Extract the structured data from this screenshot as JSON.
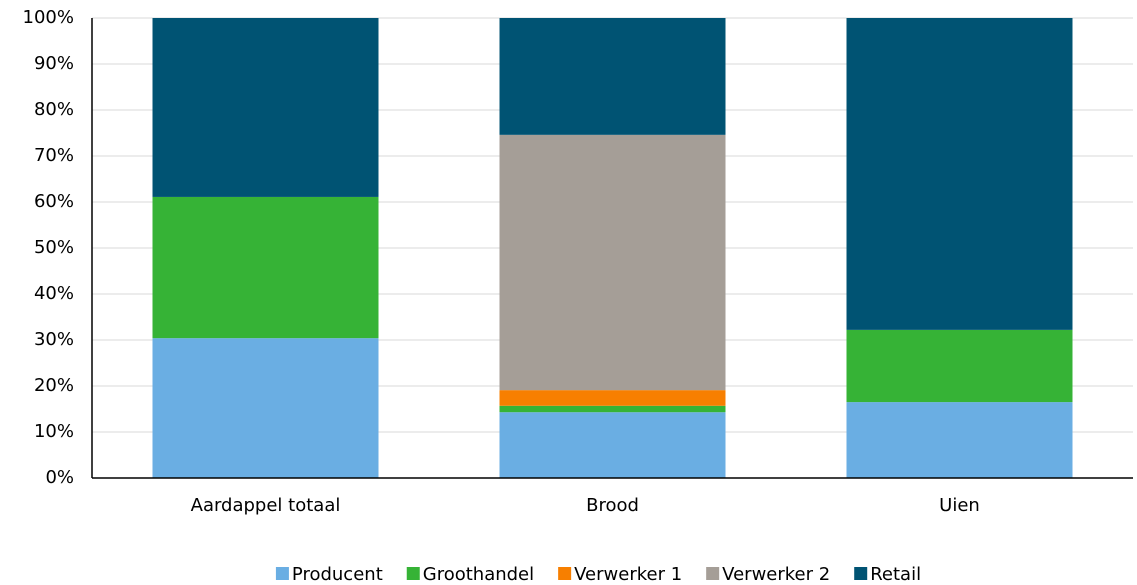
{
  "chart_data": {
    "type": "stacked_bar",
    "categories": [
      "Aardappel totaal",
      "Brood",
      "Uien"
    ],
    "series": [
      {
        "name": "Producent",
        "color": "#6aaee3",
        "values": [
          30.4,
          14.3,
          16.5
        ]
      },
      {
        "name": "Groothandel",
        "color": "#36b336",
        "values": [
          30.7,
          1.4,
          15.7
        ]
      },
      {
        "name": "Verwerker 1",
        "color": "#f77f00",
        "values": [
          0,
          3.4,
          0
        ]
      },
      {
        "name": "Verwerker 2",
        "color": "#a59e97",
        "values": [
          0,
          55.5,
          0
        ]
      },
      {
        "name": "Retail",
        "color": "#005373",
        "values": [
          38.9,
          25.4,
          67.8
        ]
      }
    ],
    "ylim": [
      0,
      100
    ],
    "yticks": [
      {
        "value": 0,
        "label": "0%"
      },
      {
        "value": 10,
        "label": "10%"
      },
      {
        "value": 20,
        "label": "20%"
      },
      {
        "value": 30,
        "label": "30%"
      },
      {
        "value": 40,
        "label": "40%"
      },
      {
        "value": 50,
        "label": "50%"
      },
      {
        "value": 60,
        "label": "60%"
      },
      {
        "value": 70,
        "label": "70%"
      },
      {
        "value": 80,
        "label": "80%"
      },
      {
        "value": 90,
        "label": "90%"
      },
      {
        "value": 100,
        "label": "100%"
      }
    ],
    "grid": true,
    "legend": "bottom"
  }
}
